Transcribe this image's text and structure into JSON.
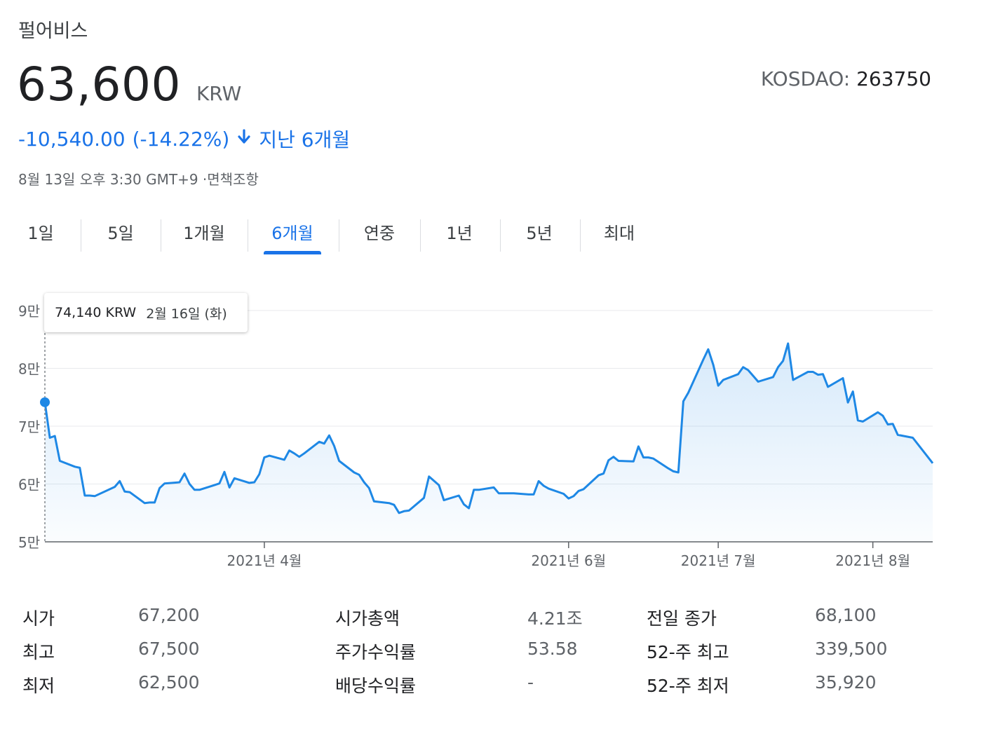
{
  "company_name": "펄어비스",
  "price": "63,600",
  "currency": "KRW",
  "ticker": {
    "exchange": "KOSDAO:",
    "code": "263750"
  },
  "change": {
    "amount": "-10,540.00",
    "percent": "(-14.22%)",
    "direction_icon": "arrow-down-icon",
    "period": "지난 6개월"
  },
  "timestamp": "8월 13일 오후 3:30 GMT+9 ·면책조항",
  "tabs": [
    {
      "label": "1일",
      "active": false
    },
    {
      "label": "5일",
      "active": false
    },
    {
      "label": "1개월",
      "active": false
    },
    {
      "label": "6개월",
      "active": true
    },
    {
      "label": "연중",
      "active": false
    },
    {
      "label": "1년",
      "active": false
    },
    {
      "label": "5년",
      "active": false
    },
    {
      "label": "최대",
      "active": false
    }
  ],
  "tooltip": {
    "value": "74,140 KRW",
    "date": "2월 16일 (화)"
  },
  "colors": {
    "accent": "#1a73e8",
    "line": "#1e88e5",
    "fill": "#e8f1fd",
    "down": "#1a73e8"
  },
  "chart_data": {
    "type": "area",
    "x_start": "2021-02-16",
    "x_end": "2021-08-13",
    "y_ticks": [
      {
        "value": 90000,
        "label": "9만"
      },
      {
        "value": 80000,
        "label": "8만"
      },
      {
        "value": 70000,
        "label": "7만"
      },
      {
        "value": 60000,
        "label": "6만"
      },
      {
        "value": 50000,
        "label": "5만"
      }
    ],
    "x_ticks": [
      {
        "date": "2021-04-01",
        "label": "2021년 4월"
      },
      {
        "date": "2021-06-01",
        "label": "2021년 6월"
      },
      {
        "date": "2021-07-01",
        "label": "2021년 7월"
      },
      {
        "date": "2021-08-01",
        "label": "2021년 8월"
      }
    ],
    "ylim": [
      50000,
      90000
    ],
    "grid": true,
    "highlight_point": {
      "date": "2021-02-16",
      "value": 74140
    },
    "series": [
      {
        "values": [
          [
            "2021-02-16",
            74140
          ],
          [
            "2021-02-17",
            68000
          ],
          [
            "2021-02-18",
            68300
          ],
          [
            "2021-02-19",
            64000
          ],
          [
            "2021-02-22",
            63000
          ],
          [
            "2021-02-23",
            62800
          ],
          [
            "2021-02-24",
            58000
          ],
          [
            "2021-02-25",
            58000
          ],
          [
            "2021-02-26",
            57900
          ],
          [
            "2021-03-02",
            59500
          ],
          [
            "2021-03-03",
            60500
          ],
          [
            "2021-03-04",
            58700
          ],
          [
            "2021-03-05",
            58600
          ],
          [
            "2021-03-08",
            56700
          ],
          [
            "2021-03-09",
            56800
          ],
          [
            "2021-03-10",
            56800
          ],
          [
            "2021-03-11",
            59300
          ],
          [
            "2021-03-12",
            60100
          ],
          [
            "2021-03-15",
            60300
          ],
          [
            "2021-03-16",
            61800
          ],
          [
            "2021-03-17",
            60000
          ],
          [
            "2021-03-18",
            59000
          ],
          [
            "2021-03-19",
            59000
          ],
          [
            "2021-03-22",
            59800
          ],
          [
            "2021-03-23",
            60100
          ],
          [
            "2021-03-24",
            62100
          ],
          [
            "2021-03-25",
            59400
          ],
          [
            "2021-03-26",
            61000
          ],
          [
            "2021-03-29",
            60200
          ],
          [
            "2021-03-30",
            60300
          ],
          [
            "2021-03-31",
            61700
          ],
          [
            "2021-04-01",
            64600
          ],
          [
            "2021-04-02",
            64900
          ],
          [
            "2021-04-05",
            64200
          ],
          [
            "2021-04-06",
            65800
          ],
          [
            "2021-04-07",
            65300
          ],
          [
            "2021-04-08",
            64700
          ],
          [
            "2021-04-09",
            65300
          ],
          [
            "2021-04-12",
            67300
          ],
          [
            "2021-04-13",
            67000
          ],
          [
            "2021-04-14",
            68400
          ],
          [
            "2021-04-15",
            66600
          ],
          [
            "2021-04-16",
            64000
          ],
          [
            "2021-04-19",
            62000
          ],
          [
            "2021-04-20",
            61600
          ],
          [
            "2021-04-21",
            60300
          ],
          [
            "2021-04-22",
            59300
          ],
          [
            "2021-04-23",
            57000
          ],
          [
            "2021-04-26",
            56700
          ],
          [
            "2021-04-27",
            56400
          ],
          [
            "2021-04-28",
            55000
          ],
          [
            "2021-04-29",
            55300
          ],
          [
            "2021-04-30",
            55400
          ],
          [
            "2021-05-03",
            57600
          ],
          [
            "2021-05-04",
            61300
          ],
          [
            "2021-05-06",
            59800
          ],
          [
            "2021-05-07",
            57200
          ],
          [
            "2021-05-10",
            58000
          ],
          [
            "2021-05-11",
            56500
          ],
          [
            "2021-05-12",
            55800
          ],
          [
            "2021-05-13",
            59000
          ],
          [
            "2021-05-14",
            59000
          ],
          [
            "2021-05-17",
            59400
          ],
          [
            "2021-05-18",
            58400
          ],
          [
            "2021-05-20",
            58400
          ],
          [
            "2021-05-21",
            58400
          ],
          [
            "2021-05-24",
            58200
          ],
          [
            "2021-05-25",
            58200
          ],
          [
            "2021-05-26",
            60500
          ],
          [
            "2021-05-27",
            59700
          ],
          [
            "2021-05-28",
            59200
          ],
          [
            "2021-05-31",
            58300
          ],
          [
            "2021-06-01",
            57500
          ],
          [
            "2021-06-02",
            57900
          ],
          [
            "2021-06-03",
            58800
          ],
          [
            "2021-06-04",
            59100
          ],
          [
            "2021-06-07",
            61500
          ],
          [
            "2021-06-08",
            61800
          ],
          [
            "2021-06-09",
            64100
          ],
          [
            "2021-06-10",
            64700
          ],
          [
            "2021-06-11",
            64000
          ],
          [
            "2021-06-14",
            63900
          ],
          [
            "2021-06-15",
            66500
          ],
          [
            "2021-06-16",
            64600
          ],
          [
            "2021-06-17",
            64600
          ],
          [
            "2021-06-18",
            64400
          ],
          [
            "2021-06-21",
            62700
          ],
          [
            "2021-06-22",
            62200
          ],
          [
            "2021-06-23",
            62000
          ],
          [
            "2021-06-24",
            74300
          ],
          [
            "2021-06-25",
            75800
          ],
          [
            "2021-06-28",
            81500
          ],
          [
            "2021-06-29",
            83300
          ],
          [
            "2021-06-30",
            80600
          ],
          [
            "2021-07-01",
            77000
          ],
          [
            "2021-07-02",
            78000
          ],
          [
            "2021-07-05",
            79000
          ],
          [
            "2021-07-06",
            80200
          ],
          [
            "2021-07-07",
            79700
          ],
          [
            "2021-07-08",
            78700
          ],
          [
            "2021-07-09",
            77700
          ],
          [
            "2021-07-12",
            78500
          ],
          [
            "2021-07-13",
            80200
          ],
          [
            "2021-07-14",
            81300
          ],
          [
            "2021-07-15",
            84300
          ],
          [
            "2021-07-16",
            78000
          ],
          [
            "2021-07-19",
            79400
          ],
          [
            "2021-07-20",
            79400
          ],
          [
            "2021-07-21",
            78900
          ],
          [
            "2021-07-22",
            79000
          ],
          [
            "2021-07-23",
            76800
          ],
          [
            "2021-07-26",
            78300
          ],
          [
            "2021-07-27",
            74100
          ],
          [
            "2021-07-28",
            76000
          ],
          [
            "2021-07-29",
            71000
          ],
          [
            "2021-07-30",
            70800
          ],
          [
            "2021-08-02",
            72400
          ],
          [
            "2021-08-03",
            71800
          ],
          [
            "2021-08-04",
            70300
          ],
          [
            "2021-08-05",
            70400
          ],
          [
            "2021-08-06",
            68500
          ],
          [
            "2021-08-09",
            68000
          ],
          [
            "2021-08-13",
            63600
          ]
        ]
      }
    ]
  },
  "stats": [
    [
      {
        "label": "시가",
        "value": "67,200"
      },
      {
        "label": "시가총액",
        "value": "4.21조"
      },
      {
        "label": "전일 종가",
        "value": "68,100"
      }
    ],
    [
      {
        "label": "최고",
        "value": "67,500"
      },
      {
        "label": "주가수익률",
        "value": "53.58"
      },
      {
        "label": "52-주 최고",
        "value": "339,500"
      }
    ],
    [
      {
        "label": "최저",
        "value": "62,500"
      },
      {
        "label": "배당수익률",
        "value": "-"
      },
      {
        "label": "52-주 최저",
        "value": "35,920"
      }
    ]
  ]
}
